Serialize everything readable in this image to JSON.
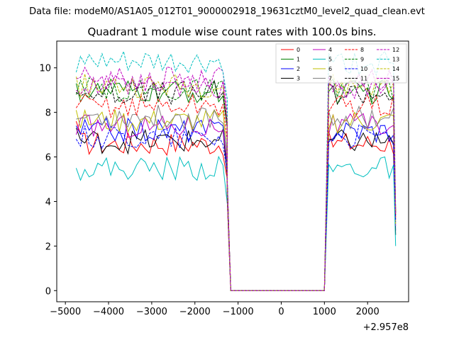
{
  "chart_data": {
    "type": "line",
    "suptitle": "Data file: modeM0/AS1A05_012T01_9000002918_19631cztM0_level2_quad_clean.evt",
    "title": "Quadrant 1 module wise count rates with 100.0s bins.",
    "xlabel": "",
    "ylabel": "",
    "offset_text": "+2.957e8",
    "xlim": [
      -5200,
      2950
    ],
    "ylim": [
      -0.5,
      11.2
    ],
    "xticks": [
      -5000,
      -4000,
      -3000,
      -2000,
      -1000,
      0,
      1000,
      2000
    ],
    "xtick_labels": [
      "−5000",
      "−4000",
      "−3000",
      "−2000",
      "−1000",
      "0",
      "1000",
      "2000"
    ],
    "yticks": [
      0,
      2,
      4,
      6,
      8,
      10
    ],
    "ytick_labels": [
      "0",
      "2",
      "4",
      "6",
      "8",
      "10"
    ],
    "grid": false,
    "legend_position": "top-right",
    "legend_columns": 4,
    "gap": {
      "start": -1250,
      "end": 1000,
      "level": 0
    },
    "x_first_segment": [
      -4750,
      -1350
    ],
    "x_second_segment": [
      1100,
      2600
    ],
    "bin_width_s": 100,
    "series": [
      {
        "name": "0",
        "color": "#ff0000",
        "dash": false,
        "level": 6.6,
        "first_value": 7.6,
        "last_value": 3.2
      },
      {
        "name": "1",
        "color": "#008000",
        "dash": false,
        "level": 8.9,
        "first_value": 9.3,
        "last_value": 3.6
      },
      {
        "name": "2",
        "color": "#0000ff",
        "dash": false,
        "level": 7.2,
        "first_value": 7.4,
        "last_value": 2.7
      },
      {
        "name": "3",
        "color": "#000000",
        "dash": false,
        "level": 6.7,
        "first_value": 7.3,
        "last_value": 2.5
      },
      {
        "name": "4",
        "color": "#bf00bf",
        "dash": false,
        "level": 7.4,
        "first_value": 7.0,
        "last_value": 2.9
      },
      {
        "name": "5",
        "color": "#00bfbf",
        "dash": false,
        "level": 5.5,
        "first_value": 5.5,
        "last_value": 2.0
      },
      {
        "name": "6",
        "color": "#bfbf00",
        "dash": false,
        "level": 7.6,
        "first_value": 8.1,
        "last_value": 3.0
      },
      {
        "name": "7",
        "color": "#808080",
        "dash": false,
        "level": 7.8,
        "first_value": 7.7,
        "last_value": 3.4
      },
      {
        "name": "8",
        "color": "#ff0000",
        "dash": true,
        "level": 8.3,
        "first_value": 8.2,
        "last_value": 3.3
      },
      {
        "name": "9",
        "color": "#008000",
        "dash": true,
        "level": 9.0,
        "first_value": 8.8,
        "last_value": 3.5
      },
      {
        "name": "10",
        "color": "#0000ff",
        "dash": true,
        "level": 6.9,
        "first_value": 6.8,
        "last_value": 3.1
      },
      {
        "name": "11",
        "color": "#000000",
        "dash": true,
        "level": 8.9,
        "first_value": 8.9,
        "last_value": 3.4
      },
      {
        "name": "12",
        "color": "#bf00bf",
        "dash": true,
        "level": 9.5,
        "first_value": 9.5,
        "last_value": 3.6
      },
      {
        "name": "13",
        "color": "#00bfbf",
        "dash": true,
        "level": 10.2,
        "first_value": 9.8,
        "last_value": 3.8
      },
      {
        "name": "14",
        "color": "#bfbf00",
        "dash": true,
        "level": 9.2,
        "first_value": 9.6,
        "last_value": 3.5
      },
      {
        "name": "15",
        "color": "#bf00bf",
        "dash": true,
        "level": 9.1,
        "first_value": 9.0,
        "last_value": 3.4
      }
    ]
  }
}
